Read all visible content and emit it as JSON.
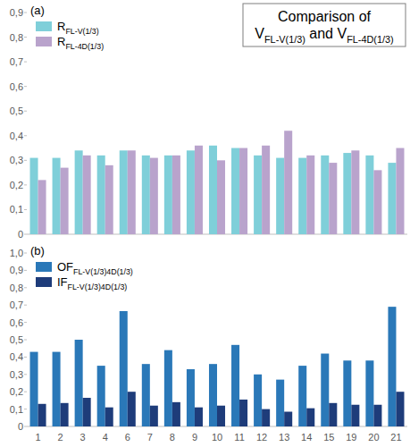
{
  "chart_data": [
    {
      "type": "bar",
      "title": "Comparison of\nVFL-V(1/3) and VFL-4D(1/3)",
      "annotations": [
        "(a)"
      ],
      "categories": [
        "1",
        "2",
        "3",
        "4",
        "6",
        "7",
        "8",
        "9",
        "10",
        "11",
        "12",
        "13",
        "14",
        "15",
        "19",
        "20",
        "21"
      ],
      "series": [
        {
          "name": "RFL-V(1/3)",
          "color": "#7fcfd9",
          "values": [
            0.31,
            0.31,
            0.34,
            0.32,
            0.34,
            0.32,
            0.32,
            0.34,
            0.36,
            0.35,
            0.32,
            0.31,
            0.31,
            0.32,
            0.33,
            0.32,
            0.29
          ]
        },
        {
          "name": "RFL-4D(1/3)",
          "color": "#b9a3cc",
          "values": [
            0.22,
            0.27,
            0.32,
            0.28,
            0.34,
            0.31,
            0.32,
            0.36,
            0.3,
            0.35,
            0.36,
            0.42,
            0.32,
            0.29,
            0.34,
            0.26,
            0.35
          ]
        }
      ],
      "ylim": [
        0,
        0.9
      ],
      "yticks": [
        0,
        {
          "value": 0.1,
          "label": "0,1"
        },
        {
          "value": 0.2,
          "label": "0,2"
        },
        {
          "value": 0.3,
          "label": "0,3"
        },
        {
          "value": 0.4,
          "label": "0,4"
        },
        {
          "value": 0.5,
          "label": "0,5"
        },
        {
          "value": 0.6,
          "label": "0,6"
        },
        {
          "value": 0.7,
          "label": "0,7"
        },
        {
          "value": 0.8,
          "label": "0,8"
        },
        {
          "value": 0.9,
          "label": "0,9"
        }
      ],
      "grid": false,
      "legend": "top-left",
      "tick_labels": "y"
    },
    {
      "type": "bar",
      "annotations": [
        "(b)"
      ],
      "categories": [
        "1",
        "2",
        "3",
        "4",
        "6",
        "7",
        "8",
        "9",
        "10",
        "11",
        "12",
        "13",
        "14",
        "15",
        "19",
        "20",
        "21"
      ],
      "series": [
        {
          "name": "OFFL-V(1/3)4D(1/3)",
          "color": "#2a78b8",
          "values": [
            0.43,
            0.43,
            0.5,
            0.35,
            0.665,
            0.36,
            0.44,
            0.33,
            0.36,
            0.47,
            0.3,
            0.27,
            0.35,
            0.42,
            0.38,
            0.38,
            0.69
          ]
        },
        {
          "name": "IFFL-V(1/3)4D(1/3)",
          "color": "#1e3c7a",
          "values": [
            0.13,
            0.135,
            0.165,
            0.11,
            0.2,
            0.12,
            0.14,
            0.11,
            0.12,
            0.155,
            0.1,
            0.085,
            0.105,
            0.135,
            0.125,
            0.125,
            0.2
          ]
        }
      ],
      "ylim": [
        0,
        1.0
      ],
      "yticks": [
        0,
        {
          "value": 0.1,
          "label": "0,1"
        },
        {
          "value": 0.2,
          "label": "0,2"
        },
        {
          "value": 0.3,
          "label": "0,3"
        },
        {
          "value": 0.4,
          "label": "0,4"
        },
        {
          "value": 0.5,
          "label": "0,5"
        },
        {
          "value": 0.6,
          "label": "0,6"
        },
        {
          "value": 0.7,
          "label": "0,7"
        },
        {
          "value": 0.8,
          "label": "0,8"
        },
        {
          "value": 0.9,
          "label": "0,9"
        },
        {
          "value": 1.0,
          "label": "1,0"
        }
      ],
      "grid": false,
      "legend": "top-left"
    }
  ]
}
